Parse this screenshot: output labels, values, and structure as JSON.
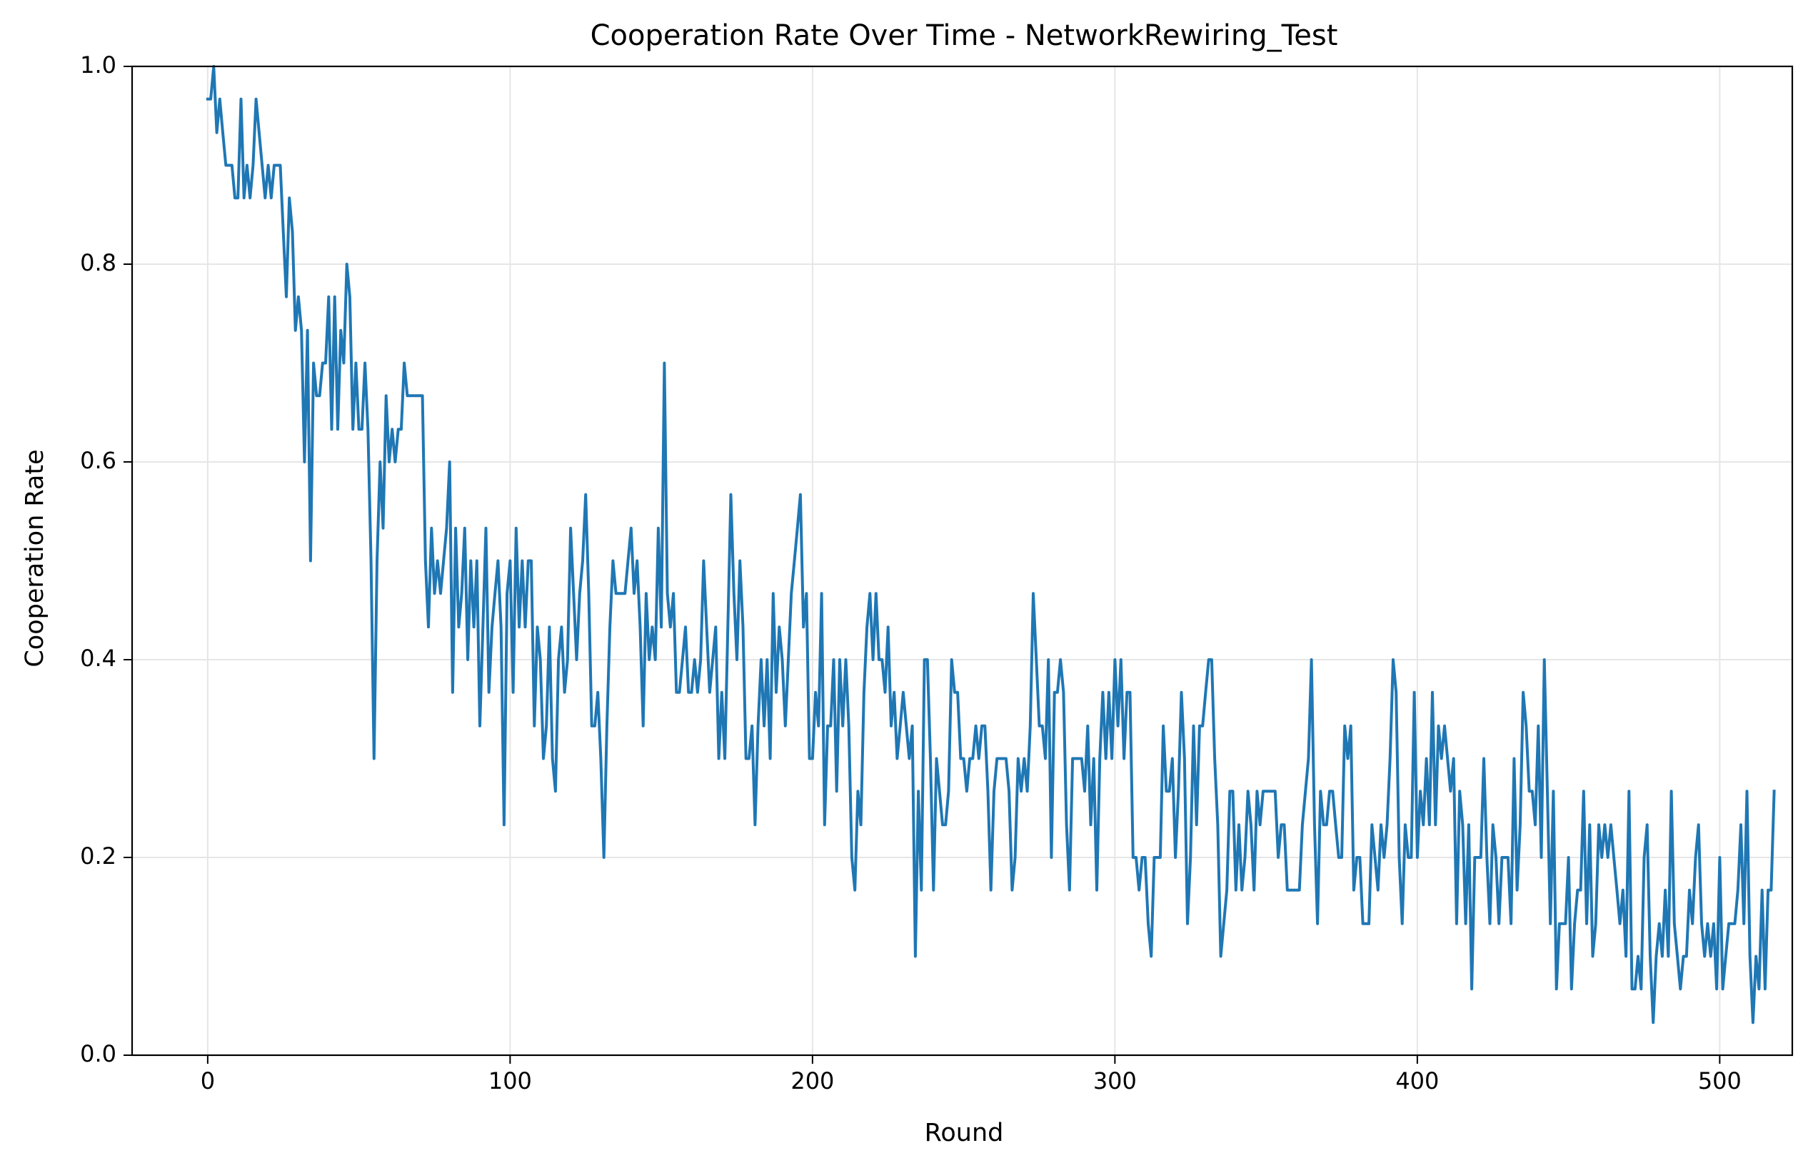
{
  "chart_data": {
    "type": "line",
    "title": "Cooperation Rate Over Time - NetworkRewiring_Test",
    "xlabel": "Round",
    "ylabel": "Cooperation Rate",
    "xlim": [
      -25,
      524
    ],
    "ylim": [
      0.0,
      1.0
    ],
    "xticks": [
      0,
      100,
      200,
      300,
      400,
      500
    ],
    "xtick_labels": [
      "0",
      "100",
      "200",
      "300",
      "400",
      "500"
    ],
    "yticks": [
      0.0,
      0.2,
      0.4,
      0.6,
      0.8,
      1.0
    ],
    "ytick_labels": [
      "0.0",
      "0.2",
      "0.4",
      "0.6",
      "0.8",
      "1.0"
    ],
    "grid": true,
    "line_color": "#1f77b4",
    "grid_color": "#e6e6e6",
    "series": [
      {
        "x_start": 0,
        "x_step": 1,
        "values": [
          0.967,
          0.967,
          1.0,
          0.933,
          0.967,
          0.933,
          0.9,
          0.9,
          0.9,
          0.867,
          0.867,
          0.967,
          0.867,
          0.9,
          0.867,
          0.9,
          0.967,
          0.933,
          0.9,
          0.867,
          0.9,
          0.867,
          0.9,
          0.9,
          0.9,
          0.833,
          0.767,
          0.867,
          0.833,
          0.733,
          0.767,
          0.733,
          0.6,
          0.733,
          0.5,
          0.7,
          0.667,
          0.667,
          0.7,
          0.7,
          0.767,
          0.633,
          0.767,
          0.633,
          0.733,
          0.7,
          0.8,
          0.767,
          0.633,
          0.7,
          0.633,
          0.633,
          0.7,
          0.633,
          0.5,
          0.3,
          0.5,
          0.6,
          0.533,
          0.667,
          0.6,
          0.633,
          0.6,
          0.633,
          0.633,
          0.7,
          0.667,
          0.667,
          0.667,
          0.667,
          0.667,
          0.667,
          0.5,
          0.433,
          0.533,
          0.467,
          0.5,
          0.467,
          0.5,
          0.533,
          0.6,
          0.367,
          0.533,
          0.433,
          0.467,
          0.533,
          0.4,
          0.5,
          0.433,
          0.5,
          0.333,
          0.433,
          0.533,
          0.367,
          0.433,
          0.467,
          0.5,
          0.433,
          0.233,
          0.467,
          0.5,
          0.367,
          0.533,
          0.433,
          0.5,
          0.433,
          0.5,
          0.5,
          0.333,
          0.433,
          0.4,
          0.3,
          0.333,
          0.433,
          0.3,
          0.267,
          0.4,
          0.433,
          0.367,
          0.4,
          0.533,
          0.467,
          0.4,
          0.467,
          0.5,
          0.567,
          0.467,
          0.333,
          0.333,
          0.367,
          0.3,
          0.2,
          0.333,
          0.433,
          0.5,
          0.467,
          0.467,
          0.467,
          0.467,
          0.5,
          0.533,
          0.467,
          0.5,
          0.433,
          0.333,
          0.467,
          0.4,
          0.433,
          0.4,
          0.533,
          0.433,
          0.7,
          0.467,
          0.433,
          0.467,
          0.367,
          0.367,
          0.4,
          0.433,
          0.367,
          0.367,
          0.4,
          0.367,
          0.4,
          0.5,
          0.433,
          0.367,
          0.4,
          0.433,
          0.3,
          0.367,
          0.3,
          0.433,
          0.567,
          0.467,
          0.4,
          0.5,
          0.433,
          0.3,
          0.3,
          0.333,
          0.233,
          0.333,
          0.4,
          0.333,
          0.4,
          0.3,
          0.467,
          0.367,
          0.433,
          0.4,
          0.333,
          0.4,
          0.467,
          0.5,
          0.533,
          0.567,
          0.433,
          0.467,
          0.3,
          0.3,
          0.367,
          0.333,
          0.467,
          0.233,
          0.333,
          0.333,
          0.4,
          0.267,
          0.4,
          0.333,
          0.4,
          0.333,
          0.2,
          0.167,
          0.267,
          0.233,
          0.367,
          0.433,
          0.467,
          0.4,
          0.467,
          0.4,
          0.4,
          0.367,
          0.433,
          0.333,
          0.367,
          0.3,
          0.333,
          0.367,
          0.333,
          0.3,
          0.333,
          0.1,
          0.267,
          0.167,
          0.4,
          0.4,
          0.3,
          0.167,
          0.3,
          0.267,
          0.233,
          0.233,
          0.267,
          0.4,
          0.367,
          0.367,
          0.3,
          0.3,
          0.267,
          0.3,
          0.3,
          0.333,
          0.3,
          0.333,
          0.333,
          0.267,
          0.167,
          0.267,
          0.3,
          0.3,
          0.3,
          0.3,
          0.267,
          0.167,
          0.2,
          0.3,
          0.267,
          0.3,
          0.267,
          0.333,
          0.467,
          0.4,
          0.333,
          0.333,
          0.3,
          0.4,
          0.2,
          0.367,
          0.367,
          0.4,
          0.367,
          0.233,
          0.167,
          0.3,
          0.3,
          0.3,
          0.3,
          0.267,
          0.333,
          0.233,
          0.3,
          0.167,
          0.3,
          0.367,
          0.3,
          0.367,
          0.3,
          0.4,
          0.333,
          0.4,
          0.3,
          0.367,
          0.367,
          0.2,
          0.2,
          0.167,
          0.2,
          0.2,
          0.133,
          0.1,
          0.2,
          0.2,
          0.2,
          0.333,
          0.267,
          0.267,
          0.3,
          0.2,
          0.267,
          0.367,
          0.3,
          0.133,
          0.2,
          0.333,
          0.233,
          0.333,
          0.333,
          0.367,
          0.4,
          0.4,
          0.3,
          0.233,
          0.1,
          0.133,
          0.167,
          0.267,
          0.267,
          0.167,
          0.233,
          0.167,
          0.2,
          0.267,
          0.233,
          0.167,
          0.267,
          0.233,
          0.267,
          0.267,
          0.267,
          0.267,
          0.267,
          0.2,
          0.233,
          0.233,
          0.167,
          0.167,
          0.167,
          0.167,
          0.167,
          0.233,
          0.267,
          0.3,
          0.4,
          0.233,
          0.133,
          0.267,
          0.233,
          0.233,
          0.267,
          0.267,
          0.233,
          0.2,
          0.2,
          0.333,
          0.3,
          0.333,
          0.167,
          0.2,
          0.2,
          0.133,
          0.133,
          0.133,
          0.233,
          0.2,
          0.167,
          0.233,
          0.2,
          0.233,
          0.3,
          0.4,
          0.367,
          0.2,
          0.133,
          0.233,
          0.2,
          0.2,
          0.367,
          0.2,
          0.267,
          0.233,
          0.3,
          0.233,
          0.367,
          0.233,
          0.333,
          0.3,
          0.333,
          0.3,
          0.267,
          0.3,
          0.133,
          0.267,
          0.233,
          0.133,
          0.233,
          0.067,
          0.2,
          0.2,
          0.2,
          0.3,
          0.2,
          0.133,
          0.233,
          0.2,
          0.133,
          0.2,
          0.2,
          0.2,
          0.133,
          0.3,
          0.167,
          0.233,
          0.367,
          0.333,
          0.267,
          0.267,
          0.233,
          0.333,
          0.2,
          0.4,
          0.267,
          0.133,
          0.267,
          0.067,
          0.133,
          0.133,
          0.133,
          0.2,
          0.067,
          0.133,
          0.167,
          0.167,
          0.267,
          0.133,
          0.233,
          0.1,
          0.133,
          0.233,
          0.2,
          0.233,
          0.2,
          0.233,
          0.2,
          0.167,
          0.133,
          0.167,
          0.1,
          0.267,
          0.067,
          0.067,
          0.1,
          0.067,
          0.2,
          0.233,
          0.1,
          0.033,
          0.1,
          0.133,
          0.1,
          0.167,
          0.1,
          0.267,
          0.133,
          0.1,
          0.067,
          0.1,
          0.1,
          0.167,
          0.133,
          0.2,
          0.233,
          0.133,
          0.1,
          0.133,
          0.1,
          0.133,
          0.067,
          0.2,
          0.067,
          0.1,
          0.133,
          0.133,
          0.133,
          0.167,
          0.233,
          0.133,
          0.267,
          0.1,
          0.033,
          0.1,
          0.067,
          0.167,
          0.067,
          0.167,
          0.167,
          0.267
        ]
      }
    ]
  }
}
